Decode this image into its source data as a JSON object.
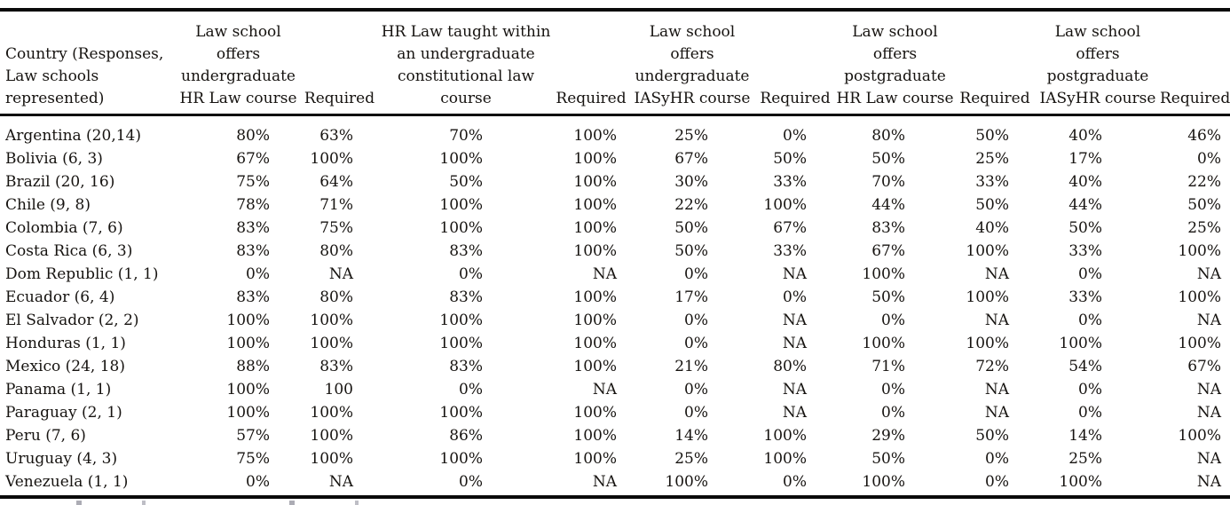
{
  "table": {
    "headers": [
      {
        "lines": [
          "Country (Responses,",
          "Law schools",
          "represented)"
        ]
      },
      {
        "lines": [
          "Law school",
          "offers",
          "undergraduate",
          "HR Law course"
        ]
      },
      {
        "lines": [
          "Required"
        ]
      },
      {
        "lines": [
          "HR Law taught within",
          "an undergraduate",
          "constitutional law",
          "course"
        ]
      },
      {
        "lines": [
          "Required"
        ]
      },
      {
        "lines": [
          "Law school",
          "offers",
          "undergraduate",
          "IASyHR course"
        ]
      },
      {
        "lines": [
          "Required"
        ]
      },
      {
        "lines": [
          "Law school",
          "offers",
          "postgraduate",
          "HR Law course"
        ]
      },
      {
        "lines": [
          "Required"
        ]
      },
      {
        "lines": [
          "Law school",
          "offers",
          "postgraduate",
          "IASyHR course"
        ]
      },
      {
        "lines": [
          "Required"
        ]
      }
    ],
    "rows": [
      {
        "country": "Argentina (20,14)",
        "values": [
          "80%",
          "63%",
          "70%",
          "100%",
          "25%",
          "0%",
          "80%",
          "50%",
          "40%",
          "46%"
        ]
      },
      {
        "country": "Bolivia (6, 3)",
        "values": [
          "67%",
          "100%",
          "100%",
          "100%",
          "67%",
          "50%",
          "50%",
          "25%",
          "17%",
          "0%"
        ]
      },
      {
        "country": "Brazil (20, 16)",
        "values": [
          "75%",
          "64%",
          "50%",
          "100%",
          "30%",
          "33%",
          "70%",
          "33%",
          "40%",
          "22%"
        ]
      },
      {
        "country": "Chile (9, 8)",
        "values": [
          "78%",
          "71%",
          "100%",
          "100%",
          "22%",
          "100%",
          "44%",
          "50%",
          "44%",
          "50%"
        ]
      },
      {
        "country": "Colombia (7, 6)",
        "values": [
          "83%",
          "75%",
          "100%",
          "100%",
          "50%",
          "67%",
          "83%",
          "40%",
          "50%",
          "25%"
        ]
      },
      {
        "country": "Costa Rica (6, 3)",
        "values": [
          "83%",
          "80%",
          "83%",
          "100%",
          "50%",
          "33%",
          "67%",
          "100%",
          "33%",
          "100%"
        ]
      },
      {
        "country": "Dom Republic (1, 1)",
        "values": [
          "0%",
          "NA",
          "0%",
          "NA",
          "0%",
          "NA",
          "100%",
          "NA",
          "0%",
          "NA"
        ]
      },
      {
        "country": "Ecuador (6, 4)",
        "values": [
          "83%",
          "80%",
          "83%",
          "100%",
          "17%",
          "0%",
          "50%",
          "100%",
          "33%",
          "100%"
        ]
      },
      {
        "country": "El Salvador (2, 2)",
        "values": [
          "100%",
          "100%",
          "100%",
          "100%",
          "0%",
          "NA",
          "0%",
          "NA",
          "0%",
          "NA"
        ]
      },
      {
        "country": "Honduras (1, 1)",
        "values": [
          "100%",
          "100%",
          "100%",
          "100%",
          "0%",
          "NA",
          "100%",
          "100%",
          "100%",
          "100%"
        ]
      },
      {
        "country": "Mexico (24, 18)",
        "values": [
          "88%",
          "83%",
          "83%",
          "100%",
          "21%",
          "80%",
          "71%",
          "72%",
          "54%",
          "67%"
        ]
      },
      {
        "country": "Panama (1, 1)",
        "values": [
          "100%",
          "100",
          "0%",
          "NA",
          "0%",
          "NA",
          "0%",
          "NA",
          "0%",
          "NA"
        ]
      },
      {
        "country": "Paraguay (2, 1)",
        "values": [
          "100%",
          "100%",
          "100%",
          "100%",
          "0%",
          "NA",
          "0%",
          "NA",
          "0%",
          "NA"
        ]
      },
      {
        "country": "Peru (7, 6)",
        "values": [
          "57%",
          "100%",
          "86%",
          "100%",
          "14%",
          "100%",
          "29%",
          "50%",
          "14%",
          "100%"
        ]
      },
      {
        "country": "Uruguay (4, 3)",
        "values": [
          "75%",
          "100%",
          "100%",
          "100%",
          "25%",
          "100%",
          "50%",
          "0%",
          "25%",
          "NA"
        ]
      },
      {
        "country": "Venezuela (1, 1)",
        "values": [
          "0%",
          "NA",
          "0%",
          "NA",
          "100%",
          "0%",
          "100%",
          "0%",
          "100%",
          "NA"
        ]
      }
    ]
  }
}
